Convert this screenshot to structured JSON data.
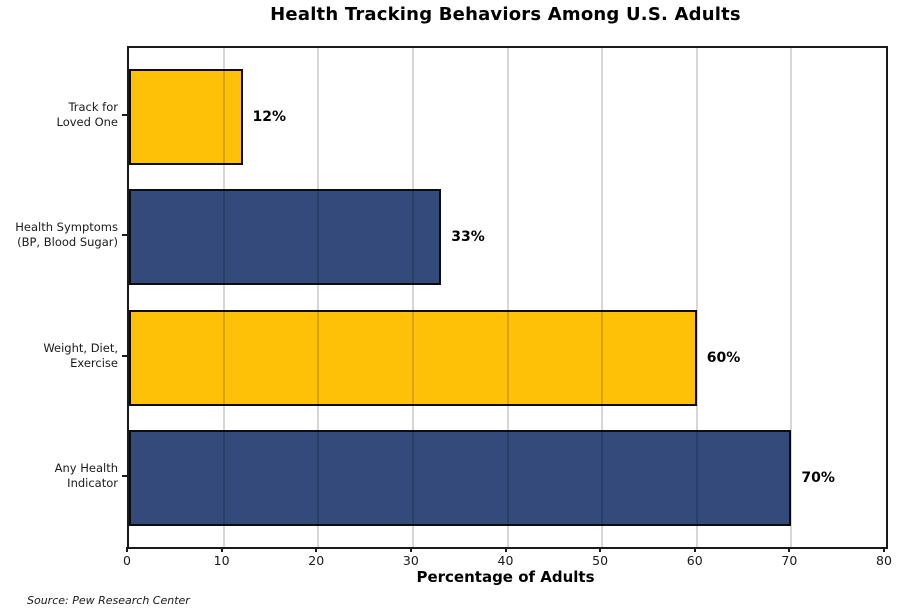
{
  "title": "Health Tracking Behaviors Among U.S. Adults",
  "source_note": "Source: Pew Research Center",
  "chart_data": {
    "type": "bar",
    "orientation": "horizontal",
    "title": "Health Tracking Behaviors Among U.S. Adults",
    "xlabel": "Percentage of Adults",
    "ylabel": "",
    "xlim": [
      0,
      80
    ],
    "xticks": [
      0,
      10,
      20,
      30,
      40,
      50,
      60,
      70,
      80
    ],
    "grid": true,
    "grid_axis": "x",
    "bar_border_color": "#0d0d0d",
    "colors": {
      "gold": "#FFC107",
      "navy": "#344A7B"
    },
    "bars": [
      {
        "category": "Track for Loved One",
        "label_lines": [
          "Track for",
          "Loved One"
        ],
        "value": 12,
        "value_label": "12%",
        "color": "#FFC107"
      },
      {
        "category": "Health Symptoms (BP, Blood Sugar)",
        "label_lines": [
          "Health Symptoms",
          "(BP, Blood Sugar)"
        ],
        "value": 33,
        "value_label": "33%",
        "color": "#344A7B"
      },
      {
        "category": "Weight, Diet, Exercise",
        "label_lines": [
          "Weight, Diet,",
          "Exercise"
        ],
        "value": 60,
        "value_label": "60%",
        "color": "#FFC107"
      },
      {
        "category": "Any Health Indicator",
        "label_lines": [
          "Any Health",
          "Indicator"
        ],
        "value": 70,
        "value_label": "70%",
        "color": "#344A7B"
      }
    ]
  }
}
